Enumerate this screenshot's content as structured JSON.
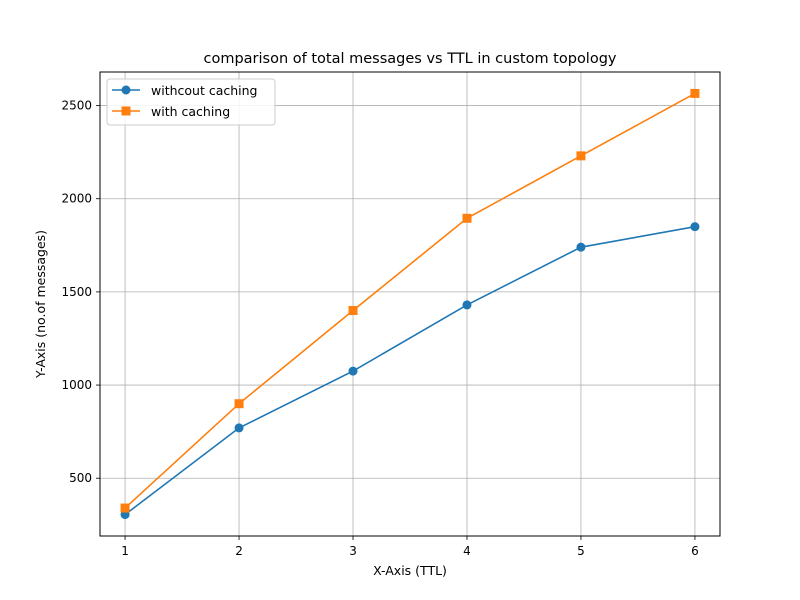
{
  "chart_data": {
    "type": "line",
    "title": "comparison of total messages vs TTL in custom topology",
    "xlabel": "X-Axis (TTL)",
    "ylabel": "Y-Axis (no.of messages)",
    "x": [
      1,
      2,
      3,
      4,
      5,
      6
    ],
    "xticks": [
      1,
      2,
      3,
      4,
      5,
      6
    ],
    "yticks": [
      500,
      1000,
      1500,
      2000,
      2500
    ],
    "xlim": [
      0.78,
      6.22
    ],
    "ylim": [
      190,
      2680
    ],
    "grid": true,
    "legend_position": "top-left",
    "series": [
      {
        "name": "withcout caching",
        "values": [
          305,
          770,
          1075,
          1430,
          1740,
          1850
        ],
        "color": "#1f77b4",
        "marker": "circle"
      },
      {
        "name": "with caching",
        "values": [
          340,
          900,
          1400,
          1895,
          2230,
          2565
        ],
        "color": "#ff7f0e",
        "marker": "square"
      }
    ]
  }
}
